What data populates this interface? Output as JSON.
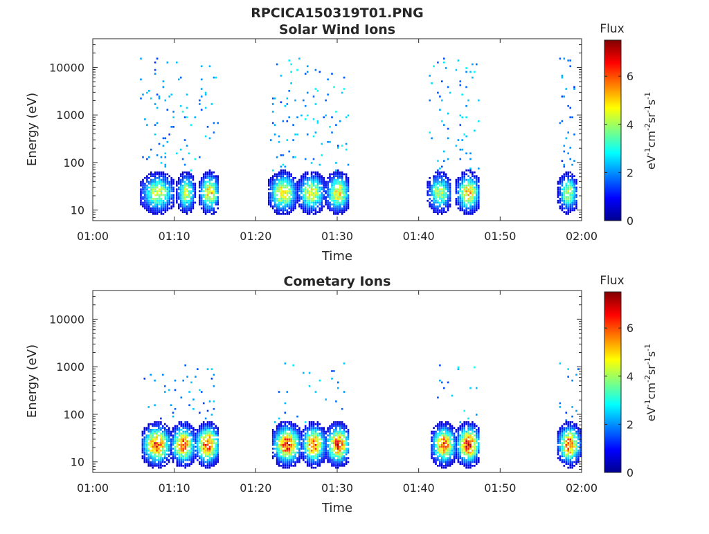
{
  "figure": {
    "title": "RPCICA150319T01.PNG",
    "colorbar_label": "Flux",
    "colorbar_unit_parts": [
      "eV",
      "-1",
      "cm",
      "-2",
      "sr",
      "-1",
      "s",
      "-1"
    ]
  },
  "chart_data": [
    {
      "type": "heatmap",
      "title": "Solar Wind Ions",
      "xlabel": "Time",
      "ylabel": "Energy (eV)",
      "x_ticks": [
        "01:00",
        "01:10",
        "01:20",
        "01:30",
        "01:40",
        "01:50",
        "02:00"
      ],
      "x_range_minutes": [
        0,
        60
      ],
      "y_scale": "log",
      "y_ticks": [
        "10",
        "100",
        "1000",
        "10000"
      ],
      "y_range": [
        6,
        40000
      ],
      "colorbar": {
        "label": "Flux",
        "ticks": [
          "0",
          "2",
          "4",
          "6"
        ],
        "range": [
          0,
          7.5
        ],
        "colormap": "jet"
      },
      "bursts": [
        {
          "start_min": 5.8,
          "end_min": 10.0,
          "low_peak": 4.8,
          "high_peak": 2.2
        },
        {
          "start_min": 10.2,
          "end_min": 12.5,
          "low_peak": 4.6,
          "high_peak": 2.5
        },
        {
          "start_min": 13.0,
          "end_min": 15.5,
          "low_peak": 5.5,
          "high_peak": 2.3
        },
        {
          "start_min": 21.5,
          "end_min": 25.0,
          "low_peak": 5.5,
          "high_peak": 2.3
        },
        {
          "start_min": 25.0,
          "end_min": 28.5,
          "low_peak": 5.0,
          "high_peak": 2.4
        },
        {
          "start_min": 28.5,
          "end_min": 31.5,
          "low_peak": 5.3,
          "high_peak": 2.5
        },
        {
          "start_min": 41.0,
          "end_min": 44.0,
          "low_peak": 4.6,
          "high_peak": 2.3
        },
        {
          "start_min": 44.5,
          "end_min": 47.5,
          "low_peak": 5.6,
          "high_peak": 2.4
        },
        {
          "start_min": 57.0,
          "end_min": 59.5,
          "low_peak": 4.5,
          "high_peak": 2.0
        }
      ]
    },
    {
      "type": "heatmap",
      "title": "Cometary Ions",
      "xlabel": "Time",
      "ylabel": "Energy (eV)",
      "x_ticks": [
        "01:00",
        "01:10",
        "01:20",
        "01:30",
        "01:40",
        "01:50",
        "02:00"
      ],
      "x_range_minutes": [
        0,
        60
      ],
      "y_scale": "log",
      "y_ticks": [
        "10",
        "100",
        "1000",
        "10000"
      ],
      "y_range": [
        6,
        40000
      ],
      "colorbar": {
        "label": "Flux",
        "ticks": [
          "0",
          "2",
          "4",
          "6"
        ],
        "range": [
          0,
          7.5
        ],
        "colormap": "jet"
      },
      "bursts": [
        {
          "start_min": 6.0,
          "end_min": 9.5,
          "low_peak": 6.8,
          "high_peak": 2.0
        },
        {
          "start_min": 9.5,
          "end_min": 12.5,
          "low_peak": 6.5,
          "high_peak": 2.2
        },
        {
          "start_min": 12.5,
          "end_min": 15.5,
          "low_peak": 7.0,
          "high_peak": 2.2
        },
        {
          "start_min": 22.0,
          "end_min": 25.5,
          "low_peak": 6.9,
          "high_peak": 2.3
        },
        {
          "start_min": 25.5,
          "end_min": 28.5,
          "low_peak": 6.5,
          "high_peak": 2.4
        },
        {
          "start_min": 28.5,
          "end_min": 31.5,
          "low_peak": 6.8,
          "high_peak": 2.3
        },
        {
          "start_min": 41.5,
          "end_min": 44.5,
          "low_peak": 6.6,
          "high_peak": 2.3
        },
        {
          "start_min": 44.5,
          "end_min": 47.5,
          "low_peak": 7.0,
          "high_peak": 2.5
        },
        {
          "start_min": 57.0,
          "end_min": 59.8,
          "low_peak": 6.6,
          "high_peak": 2.2
        }
      ]
    }
  ]
}
